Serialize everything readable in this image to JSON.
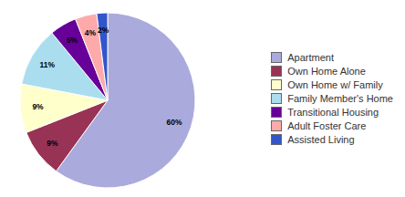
{
  "chart_data": {
    "type": "pie",
    "categories": [
      "Apartment",
      "Own Home Alone",
      "Own Home w/ Family",
      "Family Member's Home",
      "Transitional Housing",
      "Adult Foster Care",
      "Assisted Living"
    ],
    "values": [
      60,
      9,
      9,
      11,
      5,
      4,
      2
    ],
    "value_labels": [
      "60%",
      "9%",
      "9%",
      "11%",
      "5%",
      "4%",
      "2%"
    ],
    "colors": [
      "#aaaadd",
      "#993355",
      "#ffffcc",
      "#aaddee",
      "#660099",
      "#ffaaaa",
      "#3355cc"
    ],
    "data_labels": true,
    "legend": "right"
  }
}
